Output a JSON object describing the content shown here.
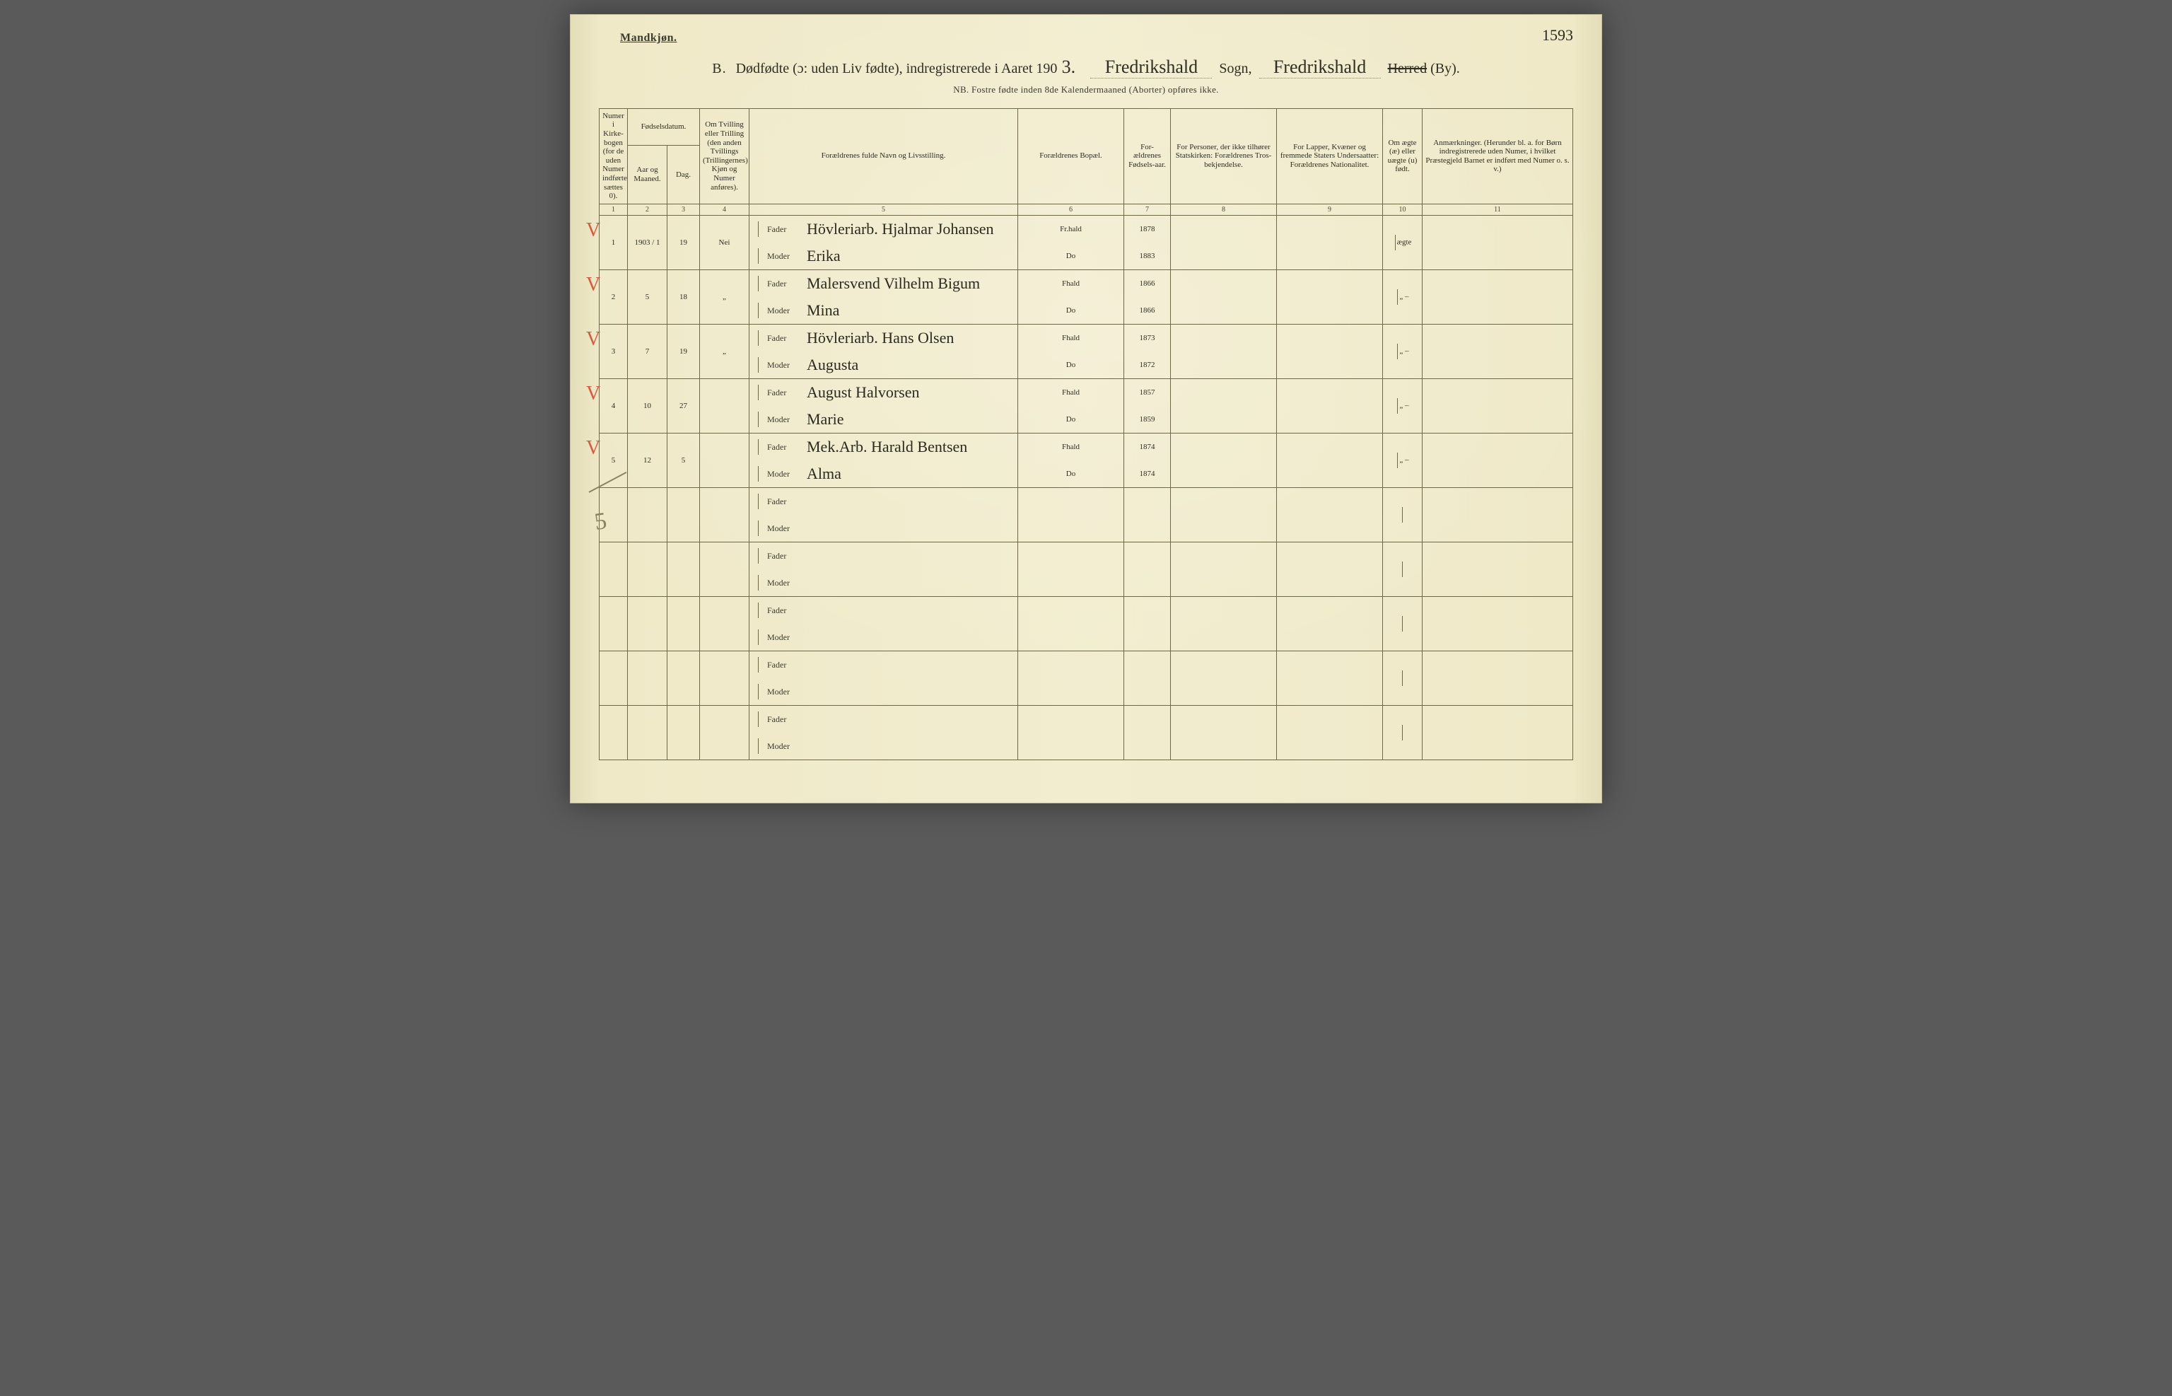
{
  "page_number_hand": "1593",
  "top_label": "Mandkjøn.",
  "title": {
    "section_letter": "B.",
    "main": "Dødfødte (ɔ: uden Liv fødte), indregistrerede i Aaret 190",
    "year_digit": "3.",
    "sogn_fill": "Fredrikshald",
    "sogn_word": "Sogn,",
    "herred_fill": "Fredrikshald",
    "herred_word": "Herred",
    "by_word": "(By).",
    "subtitle": "NB.  Fostre fødte inden 8de Kalendermaaned (Aborter) opføres ikke."
  },
  "headers": {
    "c1": "Numer i Kirke-bogen (for de uden Numer indførte sættes 0).",
    "c2_group": "Fødselsdatum.",
    "c2a": "Aar og Maaned.",
    "c2b": "Dag.",
    "c4": "Om Tvilling eller Trilling (den anden Tvillings (Trillingernes) Kjøn og Numer anføres).",
    "c5": "Forældrenes fulde Navn og Livsstilling.",
    "c6": "Forældrenes Bopæl.",
    "c7": "For-ældrenes Fødsels-aar.",
    "c8": "For Personer, der ikke tilhører Statskirken: Forældrenes Tros-bekjendelse.",
    "c9": "For Lapper, Kvæner og fremmede Staters Undersaatter: Forældrenes Nationalitet.",
    "c10": "Om ægte (æ) eller uægte (u) født.",
    "c11": "Anmærkninger. (Herunder bl. a. for Børn indregistrerede uden Numer, i hvilket Præstegjeld Barnet er indført med Numer o. s. v.)"
  },
  "colnums": [
    "1",
    "2",
    "3",
    "4",
    "5",
    "6",
    "7",
    "8",
    "9",
    "10",
    "11"
  ],
  "fm_labels": {
    "fader": "Fader",
    "moder": "Moder"
  },
  "rows": [
    {
      "mark": "V",
      "num": "1",
      "aar_mnd": "1903 / 1",
      "dag": "19",
      "tvilling": "Nei",
      "fader_navn": "Hövleriarb. Hjalmar Johansen",
      "fader_bopæl": "Fr.hald",
      "fader_aar": "1878",
      "moder_navn": "Erika",
      "moder_bopæl": "Do",
      "moder_aar": "1883",
      "ægte": "ægte"
    },
    {
      "mark": "V",
      "num": "2",
      "aar_mnd": "5",
      "dag": "18",
      "tvilling": "„",
      "fader_navn": "Malersvend Vilhelm Bigum",
      "fader_bopæl": "Fhald",
      "fader_aar": "1866",
      "moder_navn": "Mina",
      "moder_bopæl": "Do",
      "moder_aar": "1866",
      "ægte": "„ –"
    },
    {
      "mark": "V",
      "num": "3",
      "aar_mnd": "7",
      "dag": "19",
      "tvilling": "„",
      "fader_navn": "Hövleriarb. Hans Olsen",
      "fader_bopæl": "Fhald",
      "fader_aar": "1873",
      "moder_navn": "Augusta",
      "moder_bopæl": "Do",
      "moder_aar": "1872",
      "ægte": "„ –"
    },
    {
      "mark": "V",
      "num": "4",
      "aar_mnd": "10",
      "dag": "27",
      "tvilling": "",
      "fader_navn": "August Halvorsen",
      "fader_bopæl": "Fhald",
      "fader_aar": "1857",
      "moder_navn": "Marie",
      "moder_bopæl": "Do",
      "moder_aar": "1859",
      "ægte": "„ –"
    },
    {
      "mark": "V",
      "num": "5",
      "aar_mnd": "12",
      "dag": "5",
      "tvilling": "",
      "fader_navn": "Mek.Arb. Harald Bentsen",
      "fader_bopæl": "Fhald",
      "fader_aar": "1874",
      "moder_navn": "Alma",
      "moder_bopæl": "Do",
      "moder_aar": "1874",
      "ægte": "„ –"
    }
  ],
  "empty_rows": 5,
  "pencil_total": "5",
  "styling": {
    "page_bg": "#efe9c8",
    "ink": "#2a2a1e",
    "rule_color": "#6e6847",
    "red_mark": "#d85a3c",
    "pencil": "#8a8360",
    "cursive_font": "Brush Script MT",
    "print_font": "Times New Roman",
    "header_fontsize_pt": 8.5,
    "title_fontsize_pt": 15,
    "hand_fontsize_pt": 16
  }
}
